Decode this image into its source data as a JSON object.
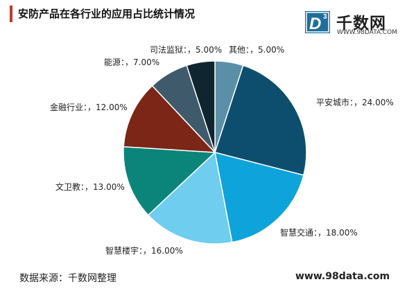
{
  "title": "安防产品在各行业的应用占比统计情况",
  "logo": {
    "name": "千数网",
    "url": "WWW.98DATA.COM",
    "mark_letter": "D",
    "mark_sup": "3",
    "icon": "d3-logo-icon"
  },
  "footer": {
    "source": "数据来源：千数网整理",
    "site": "www.98data.com"
  },
  "colors": {
    "title_bar": "#c0392b"
  },
  "chart_data": {
    "type": "pie",
    "title": "安防产品在各行业的应用占比统计情况",
    "slices": [
      {
        "name": "其他",
        "value": 5.0,
        "label": "其他：，5.00%",
        "color": "#5b8fa8"
      },
      {
        "name": "平安城市",
        "value": 24.0,
        "label": "平安城市：，24.00%",
        "color": "#0d4e6e"
      },
      {
        "name": "智慧交通",
        "value": 18.0,
        "label": "智慧交通：，18.00%",
        "color": "#0ea4db"
      },
      {
        "name": "智慧楼宇",
        "value": 16.0,
        "label": "智慧楼宇：，16.00%",
        "color": "#6fcdf0"
      },
      {
        "name": "文卫教",
        "value": 13.0,
        "label": "文卫教：，13.00%",
        "color": "#0b857a"
      },
      {
        "name": "金融行业",
        "value": 12.0,
        "label": "金融行业：，12.00%",
        "color": "#7b2617"
      },
      {
        "name": "能源",
        "value": 7.0,
        "label": "能源：，7.00%",
        "color": "#3f5a6b"
      },
      {
        "name": "司法监狱",
        "value": 5.0,
        "label": "司法监狱：，5.00%",
        "color": "#0f2530"
      }
    ]
  }
}
